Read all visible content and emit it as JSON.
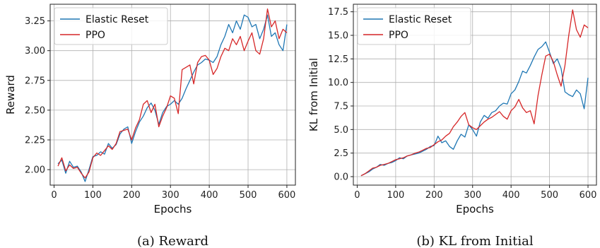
{
  "colors": {
    "elastic": "#1f77b4",
    "ppo": "#d62728"
  },
  "chart_data": [
    {
      "type": "line",
      "caption": "(a) Reward",
      "xlabel": "Epochs",
      "ylabel": "Reward",
      "xlim": [
        -10,
        622
      ],
      "ylim": [
        1.87,
        3.39
      ],
      "xticks": [
        0,
        100,
        200,
        300,
        400,
        500,
        600
      ],
      "yticks": [
        2.0,
        2.25,
        2.5,
        2.75,
        3.0,
        3.25
      ],
      "ytick_labels": [
        "2.00",
        "2.25",
        "2.50",
        "2.75",
        "3.00",
        "3.25"
      ],
      "grid": true,
      "legend": "top-left",
      "x": [
        10,
        20,
        30,
        40,
        50,
        60,
        70,
        80,
        90,
        100,
        110,
        120,
        130,
        140,
        150,
        160,
        170,
        180,
        190,
        200,
        210,
        220,
        230,
        240,
        250,
        260,
        270,
        280,
        290,
        300,
        310,
        320,
        330,
        340,
        350,
        360,
        370,
        380,
        390,
        400,
        410,
        420,
        430,
        440,
        450,
        460,
        470,
        480,
        490,
        500,
        510,
        520,
        530,
        540,
        550,
        560,
        570,
        580,
        590,
        600
      ],
      "series": [
        {
          "name": "Elastic Reset",
          "values": [
            2.05,
            2.08,
            1.97,
            2.07,
            2.02,
            2.03,
            1.98,
            1.9,
            2.0,
            2.11,
            2.12,
            2.15,
            2.13,
            2.22,
            2.18,
            2.21,
            2.3,
            2.34,
            2.36,
            2.22,
            2.32,
            2.4,
            2.45,
            2.52,
            2.56,
            2.5,
            2.38,
            2.48,
            2.53,
            2.55,
            2.58,
            2.55,
            2.6,
            2.68,
            2.75,
            2.82,
            2.88,
            2.9,
            2.93,
            2.92,
            2.9,
            2.95,
            3.05,
            3.12,
            3.22,
            3.15,
            3.25,
            3.18,
            3.3,
            3.28,
            3.2,
            3.22,
            3.1,
            3.18,
            3.3,
            3.12,
            3.15,
            3.05,
            3.0,
            3.22
          ]
        },
        {
          "name": "PPO",
          "values": [
            2.03,
            2.1,
            1.99,
            2.04,
            2.01,
            2.02,
            1.97,
            1.93,
            1.98,
            2.1,
            2.14,
            2.12,
            2.16,
            2.2,
            2.17,
            2.22,
            2.32,
            2.33,
            2.34,
            2.25,
            2.35,
            2.42,
            2.55,
            2.58,
            2.48,
            2.55,
            2.36,
            2.45,
            2.52,
            2.62,
            2.6,
            2.47,
            2.84,
            2.86,
            2.88,
            2.72,
            2.9,
            2.95,
            2.96,
            2.92,
            2.8,
            2.85,
            2.95,
            3.02,
            3.0,
            3.1,
            3.05,
            3.12,
            3.0,
            3.08,
            3.15,
            3.0,
            2.97,
            3.1,
            3.35,
            3.2,
            3.25,
            3.1,
            3.18,
            3.15
          ]
        }
      ]
    },
    {
      "type": "line",
      "caption": "(b) KL from Initial",
      "xlabel": "Epochs",
      "ylabel": "KL from Initial",
      "xlim": [
        -10,
        622
      ],
      "ylim": [
        -0.9,
        18.3
      ],
      "xticks": [
        0,
        100,
        200,
        300,
        400,
        500,
        600
      ],
      "yticks": [
        0.0,
        2.5,
        5.0,
        7.5,
        10.0,
        12.5,
        15.0,
        17.5
      ],
      "ytick_labels": [
        "0.0",
        "2.5",
        "5.0",
        "7.5",
        "10.0",
        "12.5",
        "15.0",
        "17.5"
      ],
      "grid": true,
      "legend": "top-left",
      "x": [
        10,
        20,
        30,
        40,
        50,
        60,
        70,
        80,
        90,
        100,
        110,
        120,
        130,
        140,
        150,
        160,
        170,
        180,
        190,
        200,
        210,
        220,
        230,
        240,
        250,
        260,
        270,
        280,
        290,
        300,
        310,
        320,
        330,
        340,
        350,
        360,
        370,
        380,
        390,
        400,
        410,
        420,
        430,
        440,
        450,
        460,
        470,
        480,
        490,
        500,
        510,
        520,
        530,
        540,
        550,
        560,
        570,
        580,
        590,
        600
      ],
      "series": [
        {
          "name": "Elastic Reset",
          "values": [
            0.1,
            0.3,
            0.5,
            0.8,
            1.0,
            1.3,
            1.2,
            1.4,
            1.5,
            1.7,
            2.0,
            1.9,
            2.2,
            2.3,
            2.4,
            2.5,
            2.7,
            2.9,
            3.2,
            3.3,
            4.3,
            3.6,
            3.8,
            3.2,
            2.9,
            3.8,
            4.5,
            4.2,
            5.5,
            5.0,
            4.3,
            5.8,
            6.5,
            6.2,
            6.8,
            7.0,
            7.5,
            7.8,
            7.7,
            8.8,
            9.2,
            10.1,
            11.2,
            11.0,
            11.8,
            12.7,
            13.5,
            13.8,
            14.3,
            13.2,
            12.0,
            12.5,
            11.5,
            9.0,
            8.7,
            8.5,
            9.2,
            8.8,
            7.2,
            10.5
          ]
        },
        {
          "name": "PPO",
          "values": [
            0.1,
            0.3,
            0.6,
            0.9,
            1.0,
            1.2,
            1.3,
            1.4,
            1.6,
            1.8,
            1.9,
            2.0,
            2.2,
            2.3,
            2.5,
            2.6,
            2.8,
            3.0,
            3.1,
            3.4,
            3.7,
            3.9,
            4.3,
            4.6,
            5.3,
            5.8,
            6.4,
            6.8,
            5.5,
            5.2,
            5.0,
            5.4,
            5.8,
            6.1,
            6.3,
            6.6,
            6.9,
            6.4,
            6.1,
            7.0,
            7.4,
            8.2,
            7.3,
            6.8,
            7.0,
            5.6,
            8.6,
            10.8,
            12.8,
            13.0,
            12.2,
            10.8,
            9.6,
            11.8,
            15.0,
            17.7,
            15.6,
            14.8,
            16.1,
            15.8
          ]
        }
      ]
    }
  ]
}
